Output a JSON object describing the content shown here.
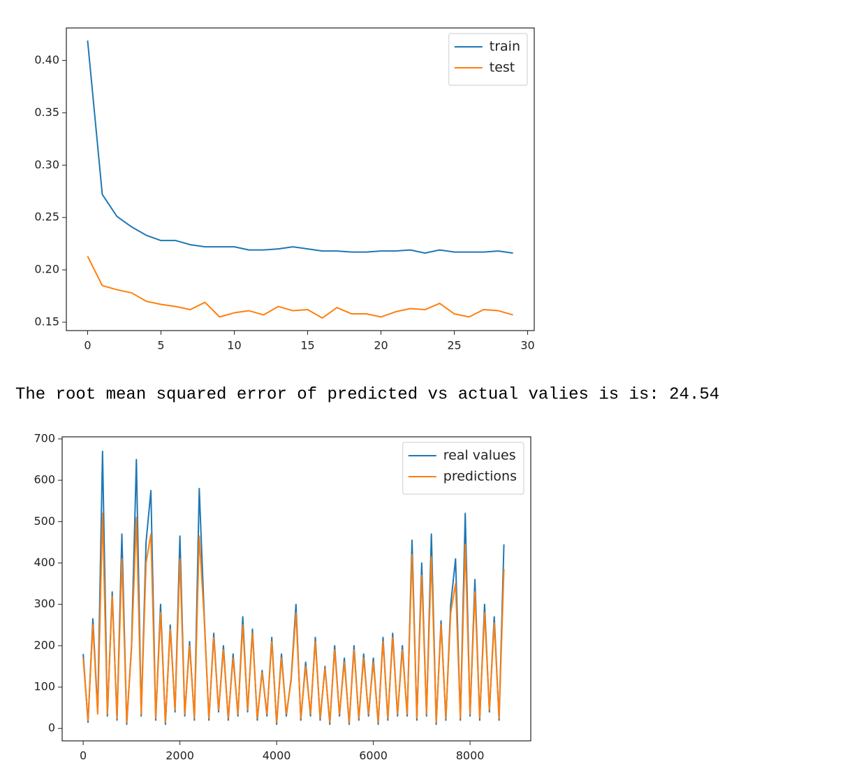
{
  "output_text": "The root mean squared error of predicted vs actual valies is is: 24.54",
  "chart_data": [
    {
      "type": "line",
      "legend": "upper right",
      "grid": false,
      "x": [
        0,
        1,
        2,
        3,
        4,
        5,
        6,
        7,
        8,
        9,
        10,
        11,
        12,
        13,
        14,
        15,
        16,
        17,
        18,
        19,
        20,
        21,
        22,
        23,
        24,
        25,
        26,
        27,
        28,
        29
      ],
      "series": [
        {
          "name": "train",
          "color": "#1f77b4",
          "values": [
            0.419,
            0.272,
            0.251,
            0.241,
            0.233,
            0.228,
            0.228,
            0.224,
            0.222,
            0.222,
            0.222,
            0.219,
            0.219,
            0.22,
            0.222,
            0.22,
            0.218,
            0.218,
            0.217,
            0.217,
            0.218,
            0.218,
            0.219,
            0.216,
            0.219,
            0.217,
            0.217,
            0.217,
            0.218,
            0.216
          ]
        },
        {
          "name": "test",
          "color": "#ff7f0e",
          "values": [
            0.213,
            0.185,
            0.181,
            0.178,
            0.17,
            0.167,
            0.165,
            0.162,
            0.169,
            0.155,
            0.159,
            0.161,
            0.157,
            0.165,
            0.161,
            0.162,
            0.154,
            0.164,
            0.158,
            0.158,
            0.155,
            0.16,
            0.163,
            0.162,
            0.168,
            0.158,
            0.155,
            0.162,
            0.161,
            0.157
          ]
        }
      ],
      "xlim": [
        -1.45,
        30.45
      ],
      "xticks": [
        0,
        5,
        10,
        15,
        20,
        25,
        30
      ],
      "ylim": [
        0.142,
        0.431
      ],
      "yticks": [
        0.15,
        {
          "value": 0.2,
          "label": "0.20"
        },
        0.25,
        {
          "value": 0.3,
          "label": "0.30"
        },
        0.35,
        {
          "value": 0.4,
          "label": "0.40"
        }
      ]
    },
    {
      "type": "line",
      "legend": "upper right",
      "grid": false,
      "x": [
        0,
        100,
        200,
        300,
        400,
        500,
        600,
        700,
        800,
        900,
        1000,
        1100,
        1200,
        1300,
        1400,
        1500,
        1600,
        1700,
        1800,
        1900,
        2000,
        2100,
        2200,
        2300,
        2400,
        2500,
        2600,
        2700,
        2800,
        2900,
        3000,
        3100,
        3200,
        3300,
        3400,
        3500,
        3600,
        3700,
        3800,
        3900,
        4000,
        4100,
        4200,
        4300,
        4400,
        4500,
        4600,
        4700,
        4800,
        4900,
        5000,
        5100,
        5200,
        5300,
        5400,
        5500,
        5600,
        5700,
        5800,
        5900,
        6000,
        6100,
        6200,
        6300,
        6400,
        6500,
        6600,
        6700,
        6800,
        6900,
        7000,
        7100,
        7200,
        7300,
        7400,
        7500,
        7600,
        7700,
        7800,
        7900,
        8000,
        8100,
        8200,
        8300,
        8400,
        8500,
        8600,
        8700
      ],
      "series": [
        {
          "name": "real values",
          "color": "#1f77b4",
          "values": [
            180,
            15,
            265,
            40,
            670,
            30,
            330,
            20,
            470,
            10,
            200,
            650,
            30,
            450,
            575,
            20,
            300,
            10,
            250,
            40,
            465,
            30,
            210,
            20,
            580,
            280,
            20,
            230,
            40,
            200,
            20,
            180,
            30,
            270,
            40,
            240,
            20,
            140,
            30,
            220,
            10,
            180,
            30,
            120,
            300,
            20,
            160,
            30,
            220,
            20,
            150,
            10,
            200,
            30,
            170,
            10,
            200,
            20,
            180,
            30,
            170,
            10,
            220,
            20,
            230,
            30,
            200,
            30,
            455,
            20,
            400,
            30,
            470,
            10,
            260,
            20,
            300,
            410,
            20,
            520,
            30,
            360,
            20,
            300,
            40,
            270,
            20,
            445
          ]
        },
        {
          "name": "predictions",
          "color": "#ff7f0e",
          "values": [
            170,
            20,
            250,
            35,
            520,
            35,
            320,
            25,
            410,
            15,
            195,
            510,
            35,
            400,
            470,
            25,
            280,
            15,
            240,
            45,
            410,
            35,
            200,
            25,
            465,
            270,
            25,
            220,
            45,
            190,
            25,
            170,
            35,
            250,
            45,
            230,
            25,
            135,
            35,
            210,
            15,
            170,
            35,
            115,
            280,
            25,
            150,
            35,
            210,
            25,
            145,
            15,
            190,
            35,
            160,
            15,
            190,
            25,
            170,
            35,
            160,
            15,
            210,
            25,
            220,
            35,
            190,
            35,
            420,
            25,
            370,
            35,
            415,
            15,
            250,
            25,
            280,
            350,
            25,
            445,
            35,
            330,
            25,
            280,
            45,
            255,
            25,
            385
          ]
        }
      ],
      "xlim": [
        -435,
        9255
      ],
      "xticks": [
        0,
        2000,
        4000,
        6000,
        8000
      ],
      "ylim": [
        -30,
        705
      ],
      "yticks": [
        0,
        100,
        200,
        300,
        400,
        500,
        600,
        700
      ]
    }
  ]
}
